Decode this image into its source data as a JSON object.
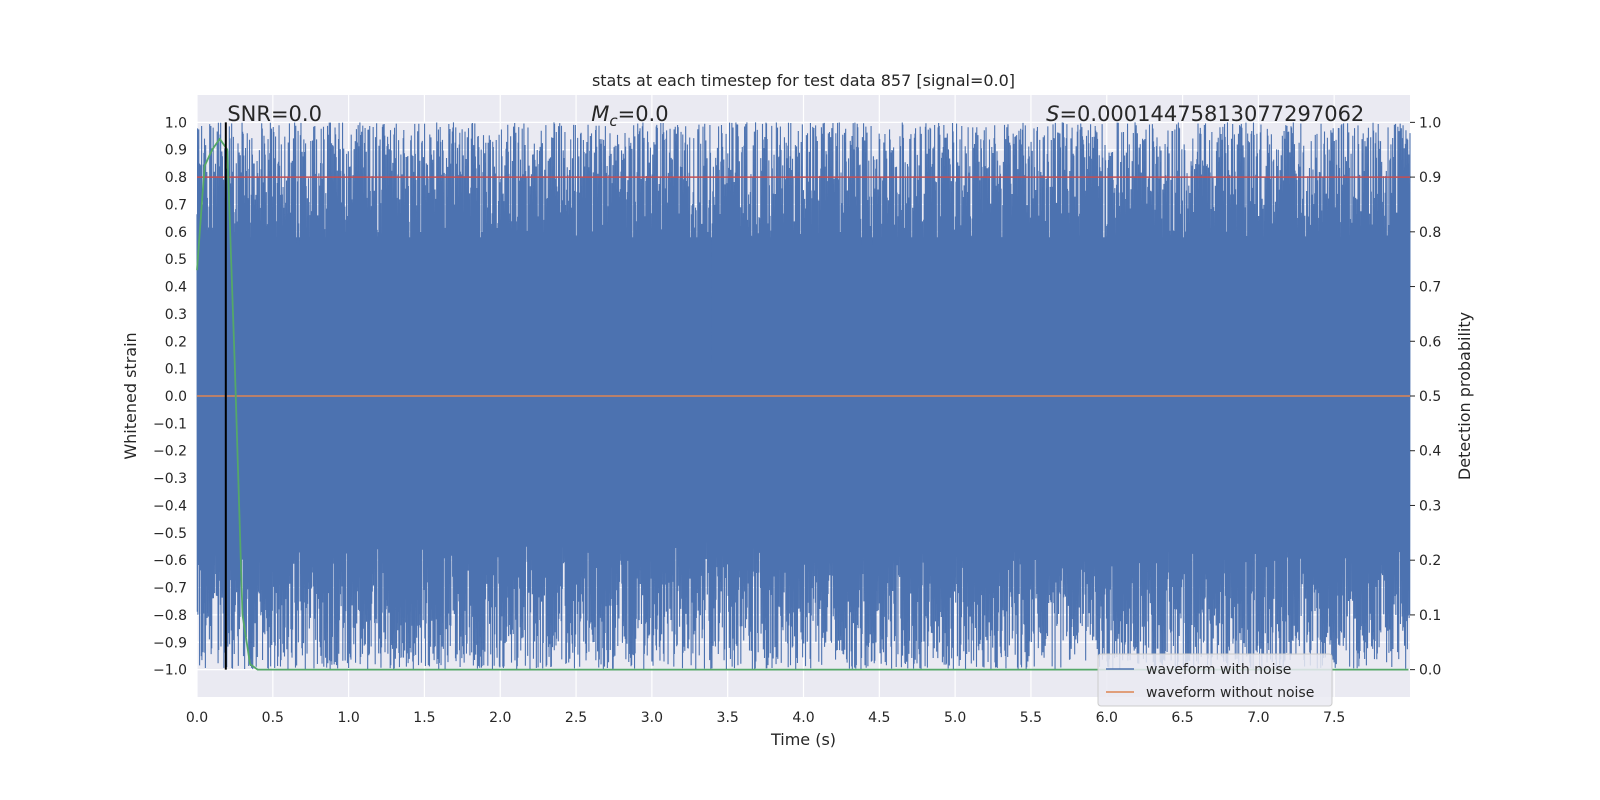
{
  "chart_data": {
    "type": "line",
    "title": "stats at each timestep for test data 857 [signal=0.0]",
    "xlabel": "Time (s)",
    "ylabel_left": "Whitened strain",
    "ylabel_right": "Detection probability",
    "xlim": [
      0.0,
      8.0
    ],
    "ylim_left": [
      -1.1,
      1.1
    ],
    "ylim_right": [
      -0.05,
      1.05
    ],
    "x_ticks": [
      "0.0",
      "0.5",
      "1.0",
      "1.5",
      "2.0",
      "2.5",
      "3.0",
      "3.5",
      "4.0",
      "4.5",
      "5.0",
      "5.5",
      "6.0",
      "6.5",
      "7.0",
      "7.5"
    ],
    "y_ticks_left": [
      "−1.0",
      "−0.9",
      "−0.8",
      "−0.7",
      "−0.6",
      "−0.5",
      "−0.4",
      "−0.3",
      "−0.2",
      "−0.1",
      "0.0",
      "0.1",
      "0.2",
      "0.3",
      "0.4",
      "0.5",
      "0.6",
      "0.7",
      "0.8",
      "0.9",
      "1.0"
    ],
    "y_ticks_right": [
      "0.0",
      "0.1",
      "0.2",
      "0.3",
      "0.4",
      "0.5",
      "0.6",
      "0.7",
      "0.8",
      "0.9",
      "1.0"
    ],
    "grid": true,
    "annotations": {
      "snr": "SNR=0.0",
      "mc_symbol": "M",
      "mc_sub": "c",
      "mc_value": "=0.0",
      "s_symbol": "S",
      "s_value": "=0.00014475813077297062"
    },
    "series": [
      {
        "name": "waveform with noise",
        "color": "#4c72b0",
        "axis": "left",
        "description_range": [
          -1.0,
          1.0
        ],
        "sample_rate_hz": 2048,
        "duration_s": 8.0
      },
      {
        "name": "waveform without noise",
        "color": "#dd8452",
        "axis": "left",
        "constant_value": 0.0
      },
      {
        "name": "",
        "color": "#c44e52",
        "axis": "right",
        "constant_value": 0.9
      },
      {
        "name": "",
        "color": "#55a868",
        "axis": "right",
        "x": [
          0.0,
          0.05,
          0.1,
          0.15,
          0.2,
          0.25,
          0.3,
          0.35,
          0.4,
          0.5,
          1.0,
          2.0,
          3.0,
          4.0,
          5.0,
          6.0,
          7.0,
          7.99
        ],
        "values": [
          0.73,
          0.92,
          0.95,
          0.97,
          0.95,
          0.55,
          0.1,
          0.01,
          0.0,
          0.0,
          0.0,
          0.0,
          0.0,
          0.0,
          0.0,
          0.0,
          0.0,
          0.0
        ]
      },
      {
        "name": "",
        "color": "#000000",
        "axis": "left",
        "vertical_line_x": 0.19
      }
    ],
    "legend": {
      "placement": "lower-right",
      "entries": [
        {
          "label": "waveform with noise",
          "color": "#4c72b0"
        },
        {
          "label": "waveform without noise",
          "color": "#dd8452"
        }
      ]
    },
    "colors": {
      "plot_bg": "#eaeaf2",
      "grid": "#ffffff",
      "text": "#262626"
    }
  }
}
